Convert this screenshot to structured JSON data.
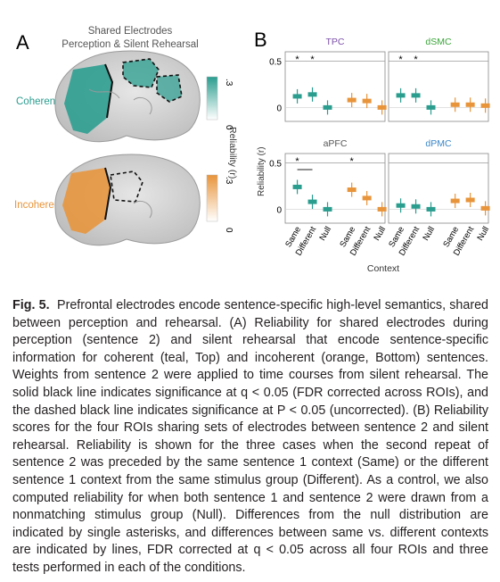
{
  "panelA": {
    "label": "A",
    "title_line1": "Shared Electrodes",
    "title_line2": "Perception & Silent Rehearsal",
    "coherent_label": "Coherent",
    "incoherent_label": "Incoherent",
    "colorbar_label": "Reliability (r)",
    "coherent_colorbar_ticks": [
      ".3",
      "0"
    ],
    "incoherent_colorbar_ticks": [
      ".3",
      "0"
    ],
    "coherent_color": "#2a9d8f",
    "incoherent_color": "#e8943a"
  },
  "panelB": {
    "label": "B",
    "ylabel": "Reliability (r)",
    "xlabel": "Context",
    "xticks": [
      "Same",
      "Different",
      "Null",
      "Same",
      "Different",
      "Null"
    ]
  },
  "chart_data": [
    {
      "type": "scatter",
      "title": "TPC",
      "title_color": "#7b4fa8",
      "ylim": [
        -0.15,
        0.6
      ],
      "yticks": [
        "0.5",
        "0"
      ],
      "categories": [
        "Same",
        "Different",
        "Null",
        "Same",
        "Different",
        "Null"
      ],
      "series": [
        {
          "values": [
            0.12,
            0.14,
            0.0,
            0.08,
            0.07,
            0.0
          ]
        }
      ],
      "annotations": [
        "*",
        "*"
      ]
    },
    {
      "type": "scatter",
      "title": "dSMC",
      "title_color": "#3aa53a",
      "ylim": [
        -0.15,
        0.6
      ],
      "categories": [
        "Same",
        "Different",
        "Null",
        "Same",
        "Different",
        "Null"
      ],
      "series": [
        {
          "values": [
            0.13,
            0.13,
            0.0,
            0.03,
            0.03,
            0.02
          ]
        }
      ],
      "annotations": [
        "*",
        "*"
      ]
    },
    {
      "type": "scatter",
      "title": "aPFC",
      "title_color": "#555555",
      "ylim": [
        -0.15,
        0.6
      ],
      "yticks": [
        "0.5",
        "0"
      ],
      "categories": [
        "Same",
        "Different",
        "Null",
        "Same",
        "Different",
        "Null"
      ],
      "series": [
        {
          "values": [
            0.24,
            0.08,
            0.0,
            0.21,
            0.12,
            0.0
          ]
        }
      ],
      "annotations": [
        "*",
        "*",
        "*"
      ]
    },
    {
      "type": "scatter",
      "title": "dPMC",
      "title_color": "#3a86c8",
      "ylim": [
        -0.15,
        0.6
      ],
      "categories": [
        "Same",
        "Different",
        "Null",
        "Same",
        "Different",
        "Null"
      ],
      "series": [
        {
          "values": [
            0.04,
            0.03,
            0.0,
            0.09,
            0.1,
            0.01
          ]
        }
      ],
      "annotations": []
    }
  ],
  "caption": {
    "lead": "Fig. 5.",
    "text": "Prefrontal electrodes encode sentence-specific high-level semantics, shared between perception and rehearsal. (A) Reliability for shared electrodes during perception (sentence 2) and silent rehearsal that encode sentence-specific information for coherent (teal, Top) and incoherent (orange, Bottom) sentences. Weights from sentence 2 were applied to time courses from silent rehearsal. The solid black line indicates significance at q < 0.05 (FDR corrected across ROIs), and the dashed black line indicates significance at P < 0.05 (uncorrected). (B) Reliability scores for the four ROIs sharing sets of electrodes between sentence 2 and silent rehearsal. Reliability is shown for the three cases when the second repeat of sentence 2 was preceded by the same sentence 1 context (Same) or the different sentence 1 context from the same stimulus group (Different). As a control, we also computed reliability for when both sentence 1 and sentence 2 were drawn from a nonmatching stimulus group (Null). Differences from the null distribution are indicated by single asterisks, and differences between same vs. different contexts are indicated by lines, FDR corrected at q < 0.05 across all four ROIs and three tests performed in each of the conditions."
  }
}
